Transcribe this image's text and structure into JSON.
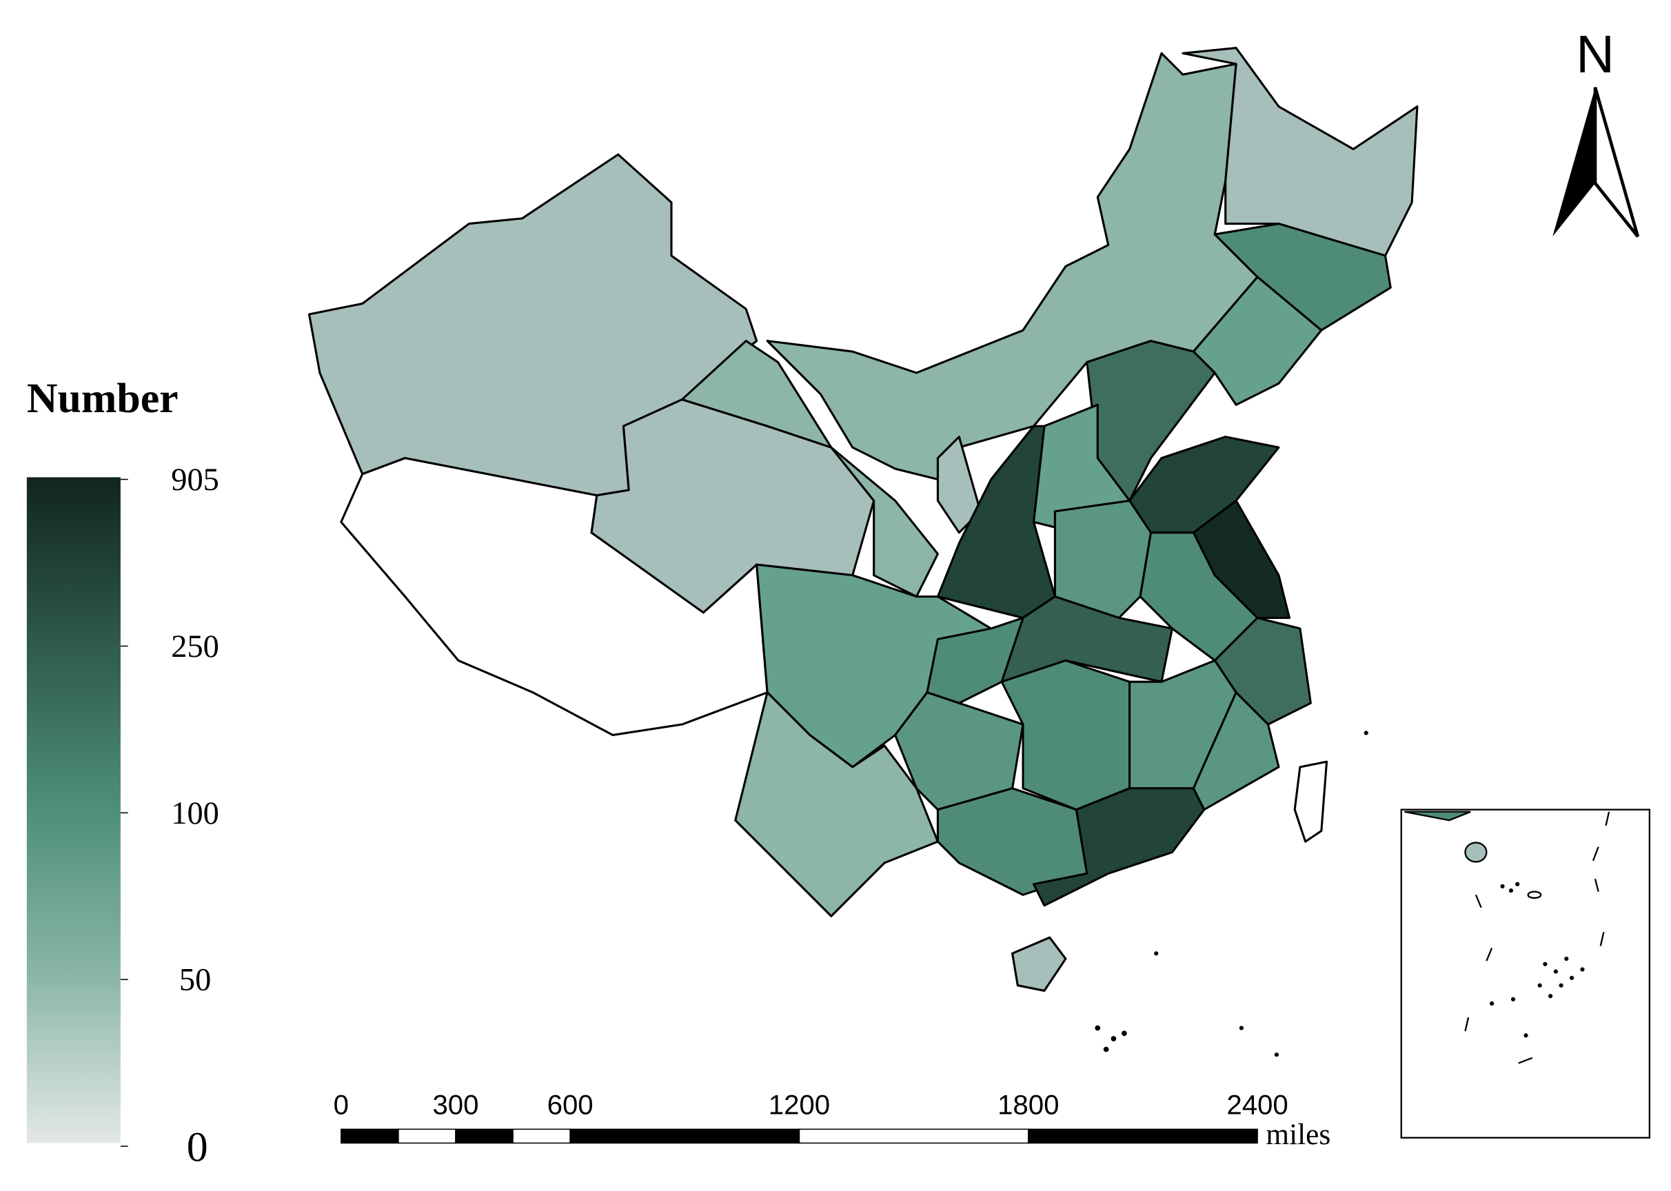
{
  "legend": {
    "title": "Number",
    "ticks": [
      905,
      250,
      100,
      50,
      0
    ]
  },
  "scale_bar": {
    "labels": [
      0,
      300,
      600,
      1200,
      1800,
      2400
    ],
    "unit": "miles"
  },
  "north_arrow": {
    "label": "N"
  }
}
